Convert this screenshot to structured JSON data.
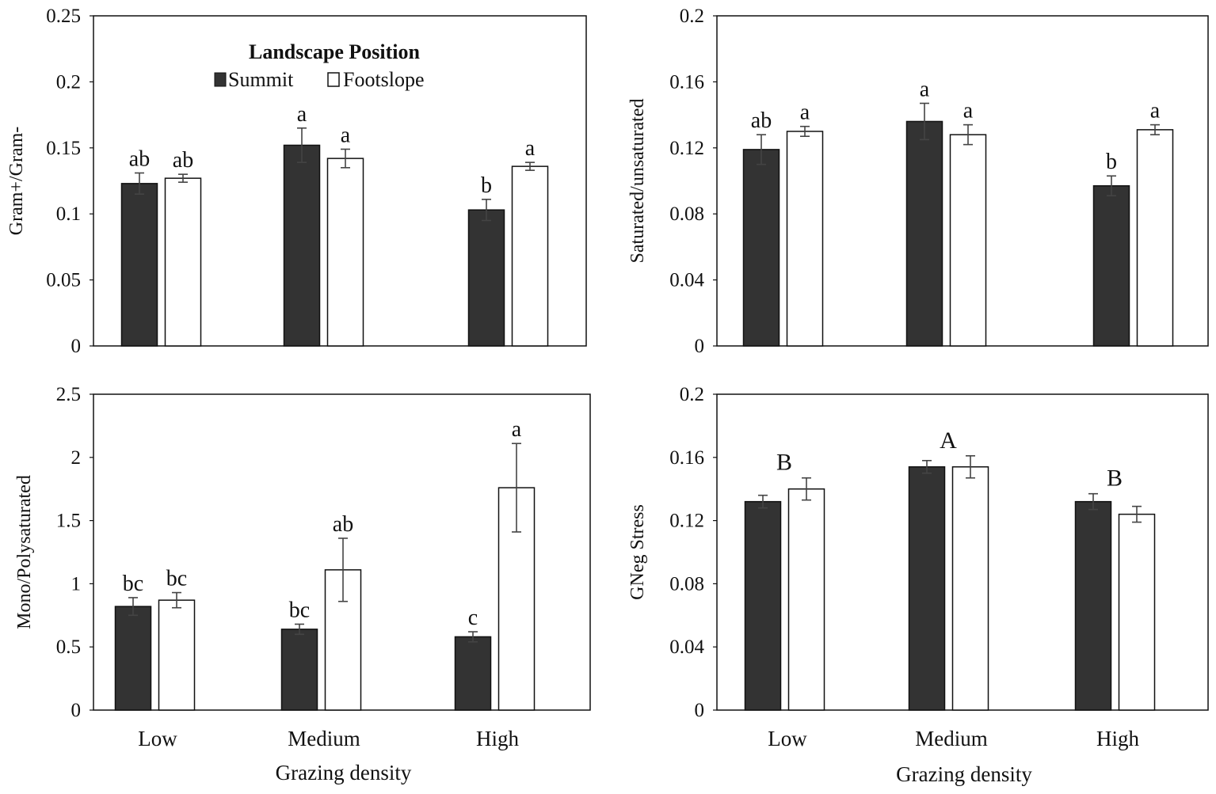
{
  "colors": {
    "summit": "#333333",
    "footslope": "#ffffff",
    "stroke": "#111111"
  },
  "legend": {
    "title": "Landscape Position",
    "items": [
      {
        "name": "Summit",
        "color": "#333333"
      },
      {
        "name": "Footslope",
        "color": "#ffffff"
      }
    ]
  },
  "chart_data": [
    {
      "type": "bar",
      "id": "gram",
      "ylabel": "Gram+/Gram-",
      "xlabel": "",
      "categories": [
        "Low",
        "Medium",
        "High"
      ],
      "ylim": [
        0,
        0.25
      ],
      "yticks": [
        "0",
        "0.05",
        "0.1",
        "0.15",
        "0.2",
        "0.25"
      ],
      "show_xticks": false,
      "series": [
        {
          "name": "Summit",
          "values": [
            0.123,
            0.152,
            0.103
          ],
          "errors": [
            0.008,
            0.013,
            0.008
          ],
          "labels": [
            "ab",
            "a",
            "b"
          ]
        },
        {
          "name": "Footslope",
          "values": [
            0.127,
            0.142,
            0.136
          ],
          "errors": [
            0.003,
            0.007,
            0.003
          ],
          "labels": [
            "ab",
            "a",
            "a"
          ]
        }
      ],
      "group_labels": []
    },
    {
      "type": "bar",
      "id": "satun",
      "ylabel": "Saturated/unsaturated",
      "xlabel": "",
      "categories": [
        "Low",
        "Medium",
        "High"
      ],
      "ylim": [
        0,
        0.2
      ],
      "yticks": [
        "0",
        "0.04",
        "0.08",
        "0.12",
        "0.16",
        "0.2"
      ],
      "show_xticks": false,
      "series": [
        {
          "name": "Summit",
          "values": [
            0.119,
            0.136,
            0.097
          ],
          "errors": [
            0.009,
            0.011,
            0.006
          ],
          "labels": [
            "ab",
            "a",
            "b"
          ]
        },
        {
          "name": "Footslope",
          "values": [
            0.13,
            0.128,
            0.131
          ],
          "errors": [
            0.003,
            0.006,
            0.003
          ],
          "labels": [
            "a",
            "a",
            "a"
          ]
        }
      ],
      "group_labels": []
    },
    {
      "type": "bar",
      "id": "mono",
      "ylabel": "Mono/Polysaturated",
      "xlabel": "Grazing density",
      "categories": [
        "Low",
        "Medium",
        "High"
      ],
      "ylim": [
        0,
        2.5
      ],
      "yticks": [
        "0",
        "0.5",
        "1",
        "1.5",
        "2",
        "2.5"
      ],
      "show_xticks": true,
      "series": [
        {
          "name": "Summit",
          "values": [
            0.82,
            0.64,
            0.58
          ],
          "errors": [
            0.07,
            0.04,
            0.04
          ],
          "labels": [
            "bc",
            "bc",
            "c"
          ]
        },
        {
          "name": "Footslope",
          "values": [
            0.87,
            1.11,
            1.76
          ],
          "errors": [
            0.06,
            0.25,
            0.35
          ],
          "labels": [
            "bc",
            "ab",
            "a"
          ]
        }
      ],
      "group_labels": []
    },
    {
      "type": "bar",
      "id": "gneg",
      "ylabel": "GNeg Stress",
      "xlabel": "Grazing density",
      "categories": [
        "Low",
        "Medium",
        "High"
      ],
      "ylim": [
        0,
        0.2
      ],
      "yticks": [
        "0",
        "0.04",
        "0.08",
        "0.12",
        "0.16",
        "0.2"
      ],
      "show_xticks": true,
      "series": [
        {
          "name": "Summit",
          "values": [
            0.132,
            0.154,
            0.132
          ],
          "errors": [
            0.004,
            0.004,
            0.005
          ],
          "labels": [
            "",
            "",
            ""
          ]
        },
        {
          "name": "Footslope",
          "values": [
            0.14,
            0.154,
            0.124
          ],
          "errors": [
            0.007,
            0.007,
            0.005
          ],
          "labels": [
            "",
            "",
            ""
          ]
        }
      ],
      "group_labels": [
        "B",
        "A",
        "B"
      ]
    }
  ]
}
